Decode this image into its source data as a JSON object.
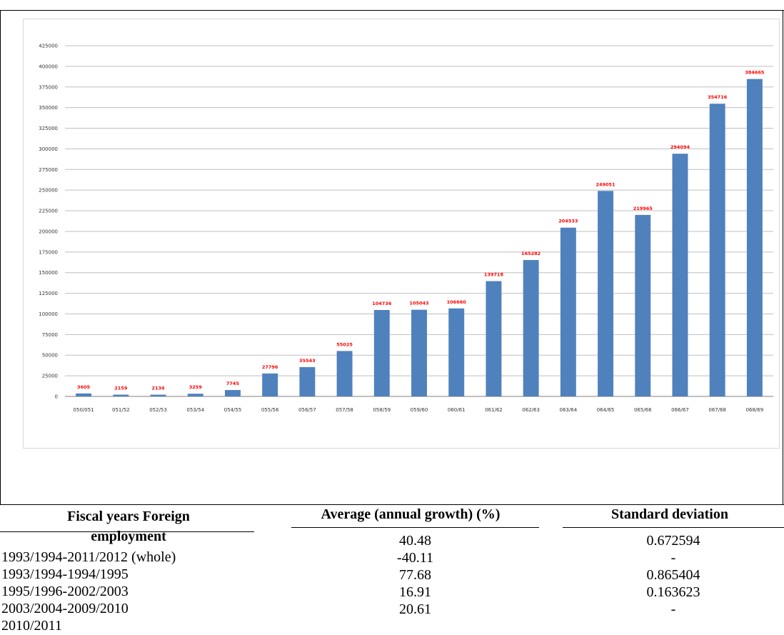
{
  "chart_data": {
    "type": "bar",
    "categories": [
      "050/051",
      "051/52",
      "052/53",
      "053/54",
      "054/55",
      "055/56",
      "056/57",
      "057/58",
      "058/59",
      "059/60",
      "060/61",
      "061/62",
      "062/63",
      "063/64",
      "064/65",
      "065/66",
      "066/67",
      "067/68",
      "068/69"
    ],
    "values": [
      3605,
      2159,
      2134,
      3259,
      7745,
      27796,
      35543,
      55025,
      104736,
      105043,
      106660,
      139718,
      165282,
      204533,
      249051,
      219965,
      294094,
      354716,
      384665
    ],
    "data_labels": [
      "3605",
      "2159",
      "2134",
      "3259",
      "7745",
      "27796",
      "35543",
      "55025",
      "104736",
      "105043",
      "106660",
      "139718",
      "165282",
      "204533",
      "249051",
      "219965",
      "294094",
      "354716",
      "384665"
    ],
    "yticks": [
      "0",
      "25000",
      "50000",
      "75000",
      "100000",
      "125000",
      "150000",
      "175000",
      "200000",
      "225000",
      "250000",
      "275000",
      "300000",
      "325000",
      "350000",
      "375000",
      "400000",
      "425000"
    ],
    "ylim": [
      0,
      425000
    ],
    "title": "",
    "xlabel": "",
    "ylabel": "",
    "grid": true,
    "bar_color": "#4f81bd",
    "label_color": "#ff0000"
  },
  "table": {
    "headers": [
      "Fiscal years  Foreign employment",
      "Average (annual growth) (%)",
      "Standard deviation"
    ],
    "periods": [
      "1993/1994-2011/2012 (whole)",
      "1993/1994-1994/1995",
      "1995/1996-2002/2003",
      "2003/2004-2009/2010",
      "2010/2011"
    ],
    "averages": [
      "40.48",
      "-40.11",
      "77.68",
      "16.91",
      "20.61"
    ],
    "std_devs": [
      "0.672594",
      "-",
      "0.865404",
      "0.163623",
      "-"
    ]
  }
}
